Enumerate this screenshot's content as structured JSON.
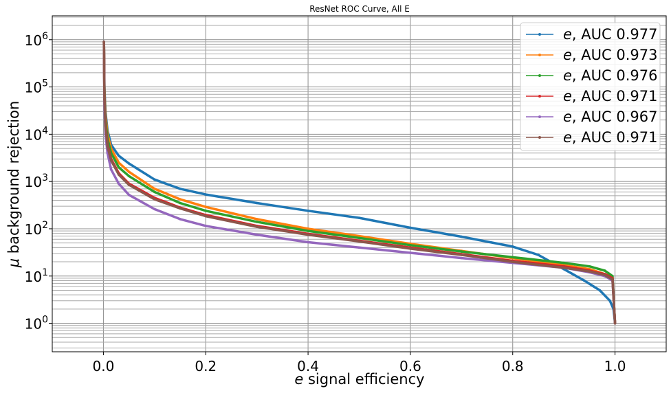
{
  "chart_data": {
    "type": "line",
    "title": "ResNet ROC Curve, All E",
    "xlabel_symbol": "e",
    "xlabel_rest": " signal efficiency",
    "ylabel_symbol": "μ",
    "ylabel_rest": " background rejection",
    "xlim": [
      -0.1,
      1.1
    ],
    "ylim": [
      0.25,
      3200000
    ],
    "yscale": "log",
    "grid": true,
    "legend_position": "top-right",
    "x_ticks": [
      "0.0",
      "0.2",
      "0.4",
      "0.6",
      "0.8",
      "1.0"
    ],
    "x_tick_values": [
      0.0,
      0.2,
      0.4,
      0.6,
      0.8,
      1.0
    ],
    "y_ticks": [
      {
        "base": "10",
        "exp": "0",
        "value": 1
      },
      {
        "base": "10",
        "exp": "1",
        "value": 10
      },
      {
        "base": "10",
        "exp": "2",
        "value": 100
      },
      {
        "base": "10",
        "exp": "3",
        "value": 1000
      },
      {
        "base": "10",
        "exp": "4",
        "value": 10000
      },
      {
        "base": "10",
        "exp": "5",
        "value": 100000
      },
      {
        "base": "10",
        "exp": "6",
        "value": 1000000
      }
    ],
    "series": [
      {
        "name_symbol": "e",
        "name_rest": ", AUC 0.977",
        "color": "#1f77b4",
        "points": [
          [
            0.001,
            900000
          ],
          [
            0.002,
            100000
          ],
          [
            0.004,
            30000
          ],
          [
            0.008,
            12000
          ],
          [
            0.015,
            6000
          ],
          [
            0.03,
            3500
          ],
          [
            0.05,
            2400
          ],
          [
            0.1,
            1100
          ],
          [
            0.15,
            700
          ],
          [
            0.2,
            530
          ],
          [
            0.3,
            350
          ],
          [
            0.4,
            240
          ],
          [
            0.5,
            170
          ],
          [
            0.6,
            105
          ],
          [
            0.7,
            68
          ],
          [
            0.8,
            42
          ],
          [
            0.85,
            28
          ],
          [
            0.9,
            14
          ],
          [
            0.94,
            8
          ],
          [
            0.97,
            5
          ],
          [
            0.99,
            3
          ],
          [
            0.997,
            2
          ],
          [
            1.0,
            1
          ]
        ]
      },
      {
        "name_symbol": "e",
        "name_rest": ", AUC 0.973",
        "color": "#ff7f0e",
        "points": [
          [
            0.001,
            900000
          ],
          [
            0.002,
            80000
          ],
          [
            0.004,
            25000
          ],
          [
            0.008,
            10000
          ],
          [
            0.015,
            5000
          ],
          [
            0.03,
            2500
          ],
          [
            0.05,
            1600
          ],
          [
            0.1,
            700
          ],
          [
            0.15,
            420
          ],
          [
            0.2,
            290
          ],
          [
            0.3,
            160
          ],
          [
            0.4,
            100
          ],
          [
            0.5,
            70
          ],
          [
            0.6,
            48
          ],
          [
            0.7,
            34
          ],
          [
            0.8,
            24
          ],
          [
            0.9,
            17
          ],
          [
            0.95,
            14
          ],
          [
            0.98,
            11
          ],
          [
            0.995,
            9
          ],
          [
            1.0,
            1
          ]
        ]
      },
      {
        "name_symbol": "e",
        "name_rest": ", AUC 0.976",
        "color": "#2ca02c",
        "points": [
          [
            0.001,
            900000
          ],
          [
            0.002,
            70000
          ],
          [
            0.004,
            20000
          ],
          [
            0.008,
            8000
          ],
          [
            0.015,
            4000
          ],
          [
            0.03,
            2000
          ],
          [
            0.05,
            1300
          ],
          [
            0.1,
            600
          ],
          [
            0.15,
            350
          ],
          [
            0.2,
            240
          ],
          [
            0.3,
            140
          ],
          [
            0.4,
            90
          ],
          [
            0.5,
            64
          ],
          [
            0.6,
            45
          ],
          [
            0.7,
            33
          ],
          [
            0.8,
            25
          ],
          [
            0.9,
            19
          ],
          [
            0.95,
            16
          ],
          [
            0.98,
            13
          ],
          [
            0.995,
            10
          ],
          [
            1.0,
            1
          ]
        ]
      },
      {
        "name_symbol": "e",
        "name_rest": ", AUC 0.971",
        "color": "#d62728",
        "points": [
          [
            0.001,
            900000
          ],
          [
            0.002,
            60000
          ],
          [
            0.004,
            16000
          ],
          [
            0.008,
            6000
          ],
          [
            0.015,
            3000
          ],
          [
            0.03,
            1500
          ],
          [
            0.05,
            900
          ],
          [
            0.1,
            450
          ],
          [
            0.15,
            280
          ],
          [
            0.2,
            195
          ],
          [
            0.3,
            115
          ],
          [
            0.4,
            78
          ],
          [
            0.5,
            56
          ],
          [
            0.6,
            40
          ],
          [
            0.7,
            29
          ],
          [
            0.8,
            21
          ],
          [
            0.9,
            16
          ],
          [
            0.95,
            13
          ],
          [
            0.98,
            11
          ],
          [
            0.995,
            9
          ],
          [
            1.0,
            1
          ]
        ]
      },
      {
        "name_symbol": "e",
        "name_rest": ", AUC 0.967",
        "color": "#9467bd",
        "points": [
          [
            0.001,
            900000
          ],
          [
            0.002,
            40000
          ],
          [
            0.004,
            10000
          ],
          [
            0.008,
            4000
          ],
          [
            0.015,
            1800
          ],
          [
            0.03,
            900
          ],
          [
            0.05,
            520
          ],
          [
            0.1,
            260
          ],
          [
            0.15,
            160
          ],
          [
            0.2,
            115
          ],
          [
            0.3,
            75
          ],
          [
            0.4,
            52
          ],
          [
            0.5,
            40
          ],
          [
            0.6,
            31
          ],
          [
            0.7,
            24
          ],
          [
            0.8,
            19
          ],
          [
            0.9,
            15
          ],
          [
            0.95,
            12
          ],
          [
            0.98,
            10
          ],
          [
            0.995,
            8
          ],
          [
            1.0,
            1
          ]
        ]
      },
      {
        "name_symbol": "e",
        "name_rest": ", AUC 0.971",
        "color": "#8c564b",
        "points": [
          [
            0.001,
            900000
          ],
          [
            0.002,
            55000
          ],
          [
            0.004,
            15000
          ],
          [
            0.008,
            5500
          ],
          [
            0.015,
            2800
          ],
          [
            0.03,
            1400
          ],
          [
            0.05,
            850
          ],
          [
            0.1,
            420
          ],
          [
            0.15,
            270
          ],
          [
            0.2,
            185
          ],
          [
            0.3,
            110
          ],
          [
            0.4,
            75
          ],
          [
            0.5,
            54
          ],
          [
            0.6,
            38
          ],
          [
            0.7,
            28
          ],
          [
            0.8,
            20
          ],
          [
            0.9,
            15
          ],
          [
            0.95,
            12.5
          ],
          [
            0.98,
            10.5
          ],
          [
            0.995,
            8.5
          ],
          [
            1.0,
            1
          ]
        ]
      }
    ]
  }
}
